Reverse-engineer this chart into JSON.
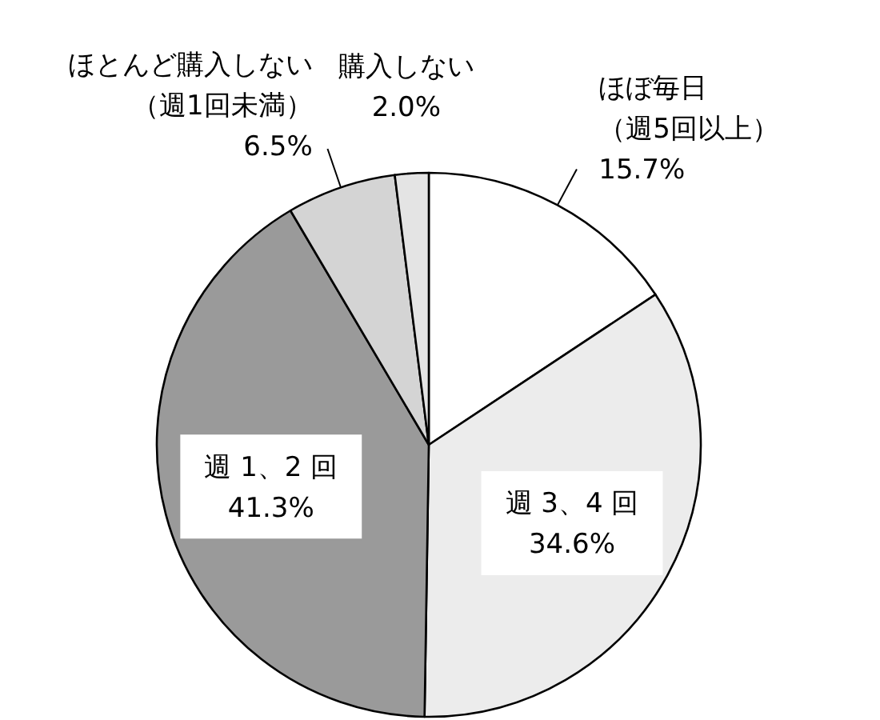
{
  "chart_data": {
    "type": "pie",
    "categories": [
      "ほぼ毎日（週5回以上）",
      "週 3、4 回",
      "週 1、2 回",
      "ほとんど購入しない（週1回未満）",
      "購入しない"
    ],
    "values": [
      15.7,
      34.6,
      41.3,
      6.5,
      2.0
    ],
    "value_labels": [
      "15.7%",
      "34.6%",
      "41.3%",
      "6.5%",
      "2.0%"
    ],
    "colors": [
      "#ffffff",
      "#ececec",
      "#9a9a9a",
      "#d4d4d4",
      "#e4e4e4"
    ]
  }
}
